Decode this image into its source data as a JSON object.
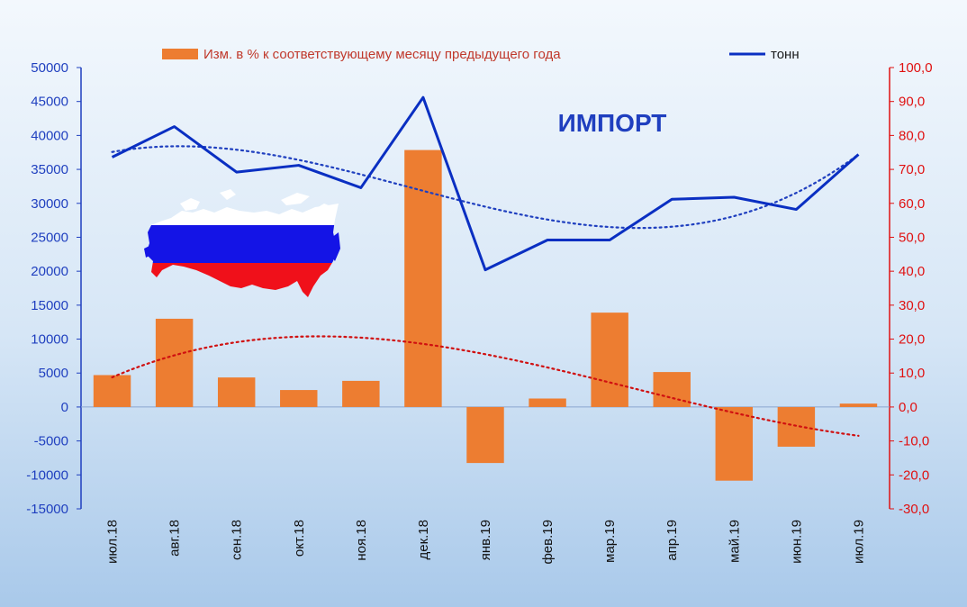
{
  "chart_data": {
    "type": "bar+line",
    "title": "ИМПОРТ",
    "categories": [
      "июл.18",
      "авг.18",
      "сен.18",
      "окт.18",
      "ноя.18",
      "дек.18",
      "янв.19",
      "фев.19",
      "мар.19",
      "апр.19",
      "май.19",
      "июн.19",
      "июл.19"
    ],
    "series": [
      {
        "name": "Изм. в % к соответствующему месяцу предыдущего года",
        "type": "bar",
        "axis": "right",
        "color": "#ed7d31",
        "values": [
          9.4,
          26.0,
          8.7,
          5.0,
          7.7,
          75.7,
          -16.5,
          2.5,
          27.8,
          10.3,
          -21.7,
          -11.7,
          1.0
        ]
      },
      {
        "name": "тонн",
        "type": "line",
        "axis": "left",
        "color": "#0a2fc2",
        "values": [
          36800,
          41300,
          34600,
          35600,
          32300,
          45600,
          20200,
          24600,
          24600,
          30600,
          30900,
          29100,
          37200
        ]
      }
    ],
    "trendlines": [
      {
        "of": "тонн",
        "color": "#1f3fbf",
        "style": "dotted",
        "type": "polynomial"
      },
      {
        "of": "Изм. в % к соответствующему месяцу предыдущего года",
        "color": "#d01010",
        "style": "dotted",
        "type": "polynomial"
      }
    ],
    "y_left": {
      "range": [
        -15000,
        50000
      ],
      "ticks": [
        -15000,
        -10000,
        -5000,
        0,
        5000,
        10000,
        15000,
        20000,
        25000,
        30000,
        35000,
        40000,
        45000,
        50000
      ],
      "tick_labels": [
        "-15000",
        "-10000",
        "-5000",
        "0",
        "5000",
        "10000",
        "15000",
        "20000",
        "25000",
        "30000",
        "35000",
        "40000",
        "45000",
        "50000"
      ],
      "color": "#1f3fbf"
    },
    "y_right": {
      "range": [
        -30,
        100
      ],
      "ticks": [
        -30,
        -20,
        -10,
        0,
        10,
        20,
        30,
        40,
        50,
        60,
        70,
        80,
        90,
        100
      ],
      "tick_labels": [
        "-30,0",
        "-20,0",
        "-10,0",
        "0,0",
        "10,0",
        "20,0",
        "30,0",
        "40,0",
        "50,0",
        "60,0",
        "70,0",
        "80,0",
        "90,0",
        "100,0"
      ],
      "color": "#e01010"
    },
    "legend": {
      "placement": "top",
      "entries": [
        "Изм. в % к соответствующему месяцу предыдущего года",
        "тонн"
      ]
    },
    "grid": false,
    "decoration": "russia-flag-map"
  }
}
